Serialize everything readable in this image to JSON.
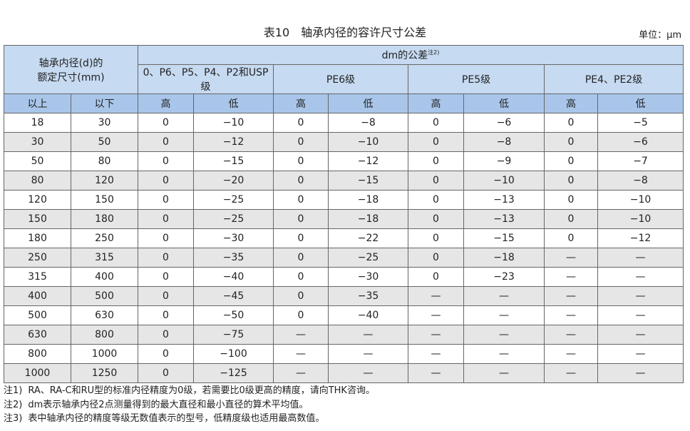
{
  "header": {
    "title": "表10　轴承内径的容许尺寸公差",
    "unit": "单位：μm"
  },
  "table": {
    "size_head": [
      "轴承内径(d)的",
      "额定尺寸(mm)"
    ],
    "dm_label": "dm的公差",
    "dm_note": "注2)",
    "groups": [
      "0、P6、P5、P4、P2和USP级",
      "PE6级",
      "PE5级",
      "PE4、PE2级"
    ],
    "sub": [
      "以上",
      "以下",
      "高",
      "低",
      "高",
      "低",
      "高",
      "低",
      "高",
      "低"
    ],
    "rows": [
      [
        "18",
        "30",
        "0",
        "−10",
        "0",
        "−8",
        "0",
        "−6",
        "0",
        "−5"
      ],
      [
        "30",
        "50",
        "0",
        "−12",
        "0",
        "−10",
        "0",
        "−8",
        "0",
        "−6"
      ],
      [
        "50",
        "80",
        "0",
        "−15",
        "0",
        "−12",
        "0",
        "−9",
        "0",
        "−7"
      ],
      [
        "80",
        "120",
        "0",
        "−20",
        "0",
        "−15",
        "0",
        "−10",
        "0",
        "−8"
      ],
      [
        "120",
        "150",
        "0",
        "−25",
        "0",
        "−18",
        "0",
        "−13",
        "0",
        "−10"
      ],
      [
        "150",
        "180",
        "0",
        "−25",
        "0",
        "−18",
        "0",
        "−13",
        "0",
        "−10"
      ],
      [
        "180",
        "250",
        "0",
        "−30",
        "0",
        "−22",
        "0",
        "−15",
        "0",
        "−12"
      ],
      [
        "250",
        "315",
        "0",
        "−35",
        "0",
        "−25",
        "0",
        "−18",
        "—",
        "—"
      ],
      [
        "315",
        "400",
        "0",
        "−40",
        "0",
        "−30",
        "0",
        "−23",
        "—",
        "—"
      ],
      [
        "400",
        "500",
        "0",
        "−45",
        "0",
        "−35",
        "—",
        "—",
        "—",
        "—"
      ],
      [
        "500",
        "630",
        "0",
        "−50",
        "0",
        "−40",
        "—",
        "—",
        "—",
        "—"
      ],
      [
        "630",
        "800",
        "0",
        "−75",
        "—",
        "—",
        "—",
        "—",
        "—",
        "—"
      ],
      [
        "800",
        "1000",
        "0",
        "−100",
        "—",
        "—",
        "—",
        "—",
        "—",
        "—"
      ],
      [
        "1000",
        "1250",
        "0",
        "−125",
        "—",
        "—",
        "—",
        "—",
        "—",
        "—"
      ]
    ]
  },
  "notes": [
    {
      "label": "注1)",
      "text": "RA、RA-C和RU型的标准内径精度为0级，若需要比0级更高的精度，请向THK咨询。"
    },
    {
      "label": "注2)",
      "text": "dm表示轴承内径2点测量得到的最大直径和最小直径的算术平均值。"
    },
    {
      "label": "注3)",
      "text": "表中轴承内径的精度等级无数值表示的型号，低精度级也适用最高数值。"
    }
  ]
}
